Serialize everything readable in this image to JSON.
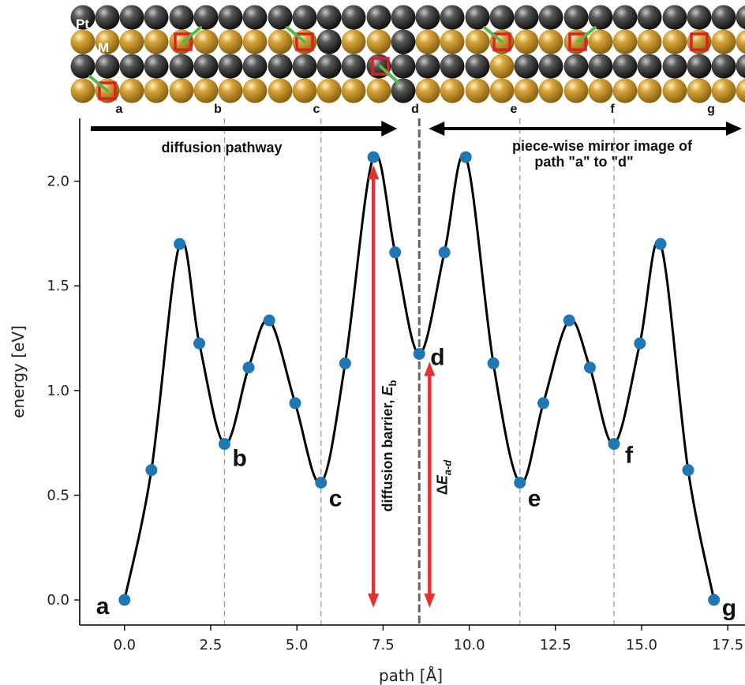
{
  "chart_data": {
    "type": "line",
    "xlabel": "path [Å]",
    "ylabel": "energy [eV]",
    "xlim": [
      -1.3,
      18.0
    ],
    "ylim": [
      -0.12,
      2.3
    ],
    "xticks": [
      0.0,
      2.5,
      5.0,
      7.5,
      10.0,
      12.5,
      15.0,
      17.5
    ],
    "xtick_labels": [
      "0.0",
      "2.5",
      "5.0",
      "7.5",
      "10.0",
      "12.5",
      "15.0",
      "17.5"
    ],
    "yticks": [
      0.0,
      0.5,
      1.0,
      1.5,
      2.0
    ],
    "ytick_labels": [
      "0.0",
      "0.5",
      "1.0",
      "1.5",
      "2.0"
    ],
    "grid": false,
    "series": [
      {
        "color": "#1f77b4",
        "x": [
          0.0,
          0.78,
          1.6,
          2.17,
          2.9,
          3.6,
          4.2,
          4.95,
          5.7,
          6.4,
          7.22,
          7.85,
          8.55,
          9.28,
          9.9,
          10.7,
          11.47,
          12.15,
          12.9,
          13.5,
          14.2,
          14.95,
          15.55,
          16.35,
          17.1
        ],
        "y": [
          0.0,
          0.62,
          1.7,
          1.225,
          0.745,
          1.11,
          1.335,
          0.94,
          0.56,
          1.13,
          2.115,
          1.66,
          1.175,
          1.66,
          2.115,
          1.13,
          0.56,
          0.94,
          1.335,
          1.11,
          0.745,
          1.225,
          1.7,
          0.62,
          0.0
        ]
      }
    ],
    "points": [
      {
        "label": "a",
        "x": 0.0,
        "y": 0.0
      },
      {
        "label": "b",
        "x": 2.9,
        "y": 0.745
      },
      {
        "label": "c",
        "x": 5.7,
        "y": 0.56
      },
      {
        "label": "d",
        "x": 8.55,
        "y": 1.175
      },
      {
        "label": "e",
        "x": 11.47,
        "y": 0.56
      },
      {
        "label": "f",
        "x": 14.2,
        "y": 0.745
      },
      {
        "label": "g",
        "x": 17.1,
        "y": 0.0
      }
    ],
    "dashed_lines_x": [
      2.9,
      5.7,
      11.47,
      14.2
    ],
    "mirror_line_x": 8.55,
    "annotations": {
      "pathway": "diffusion pathway",
      "mirror_line1": "piece-wise mirror image of",
      "mirror_line2": "path \"a\" to \"d\"",
      "barrier_text": "diffusion barrier, ",
      "barrier_symbol": "E",
      "barrier_sub": "b",
      "delta_prefix": "Δ",
      "delta_symbol": "E",
      "delta_sub": "a-d"
    },
    "barrier_arrow": {
      "x": 7.22,
      "y_from": 0.0,
      "y_to": 2.115
    },
    "delta_arrow": {
      "x": 8.85,
      "y_from": 0.0,
      "y_to": 1.175
    }
  },
  "structures": {
    "labels": [
      "a",
      "b",
      "c",
      "d",
      "e",
      "f",
      "g"
    ],
    "element_pt": "Pt",
    "element_m": "M",
    "colors": {
      "pt": "#1c1c1c",
      "m": "#c9962e",
      "marker": "#e02020",
      "arrow": "#55b848"
    }
  }
}
